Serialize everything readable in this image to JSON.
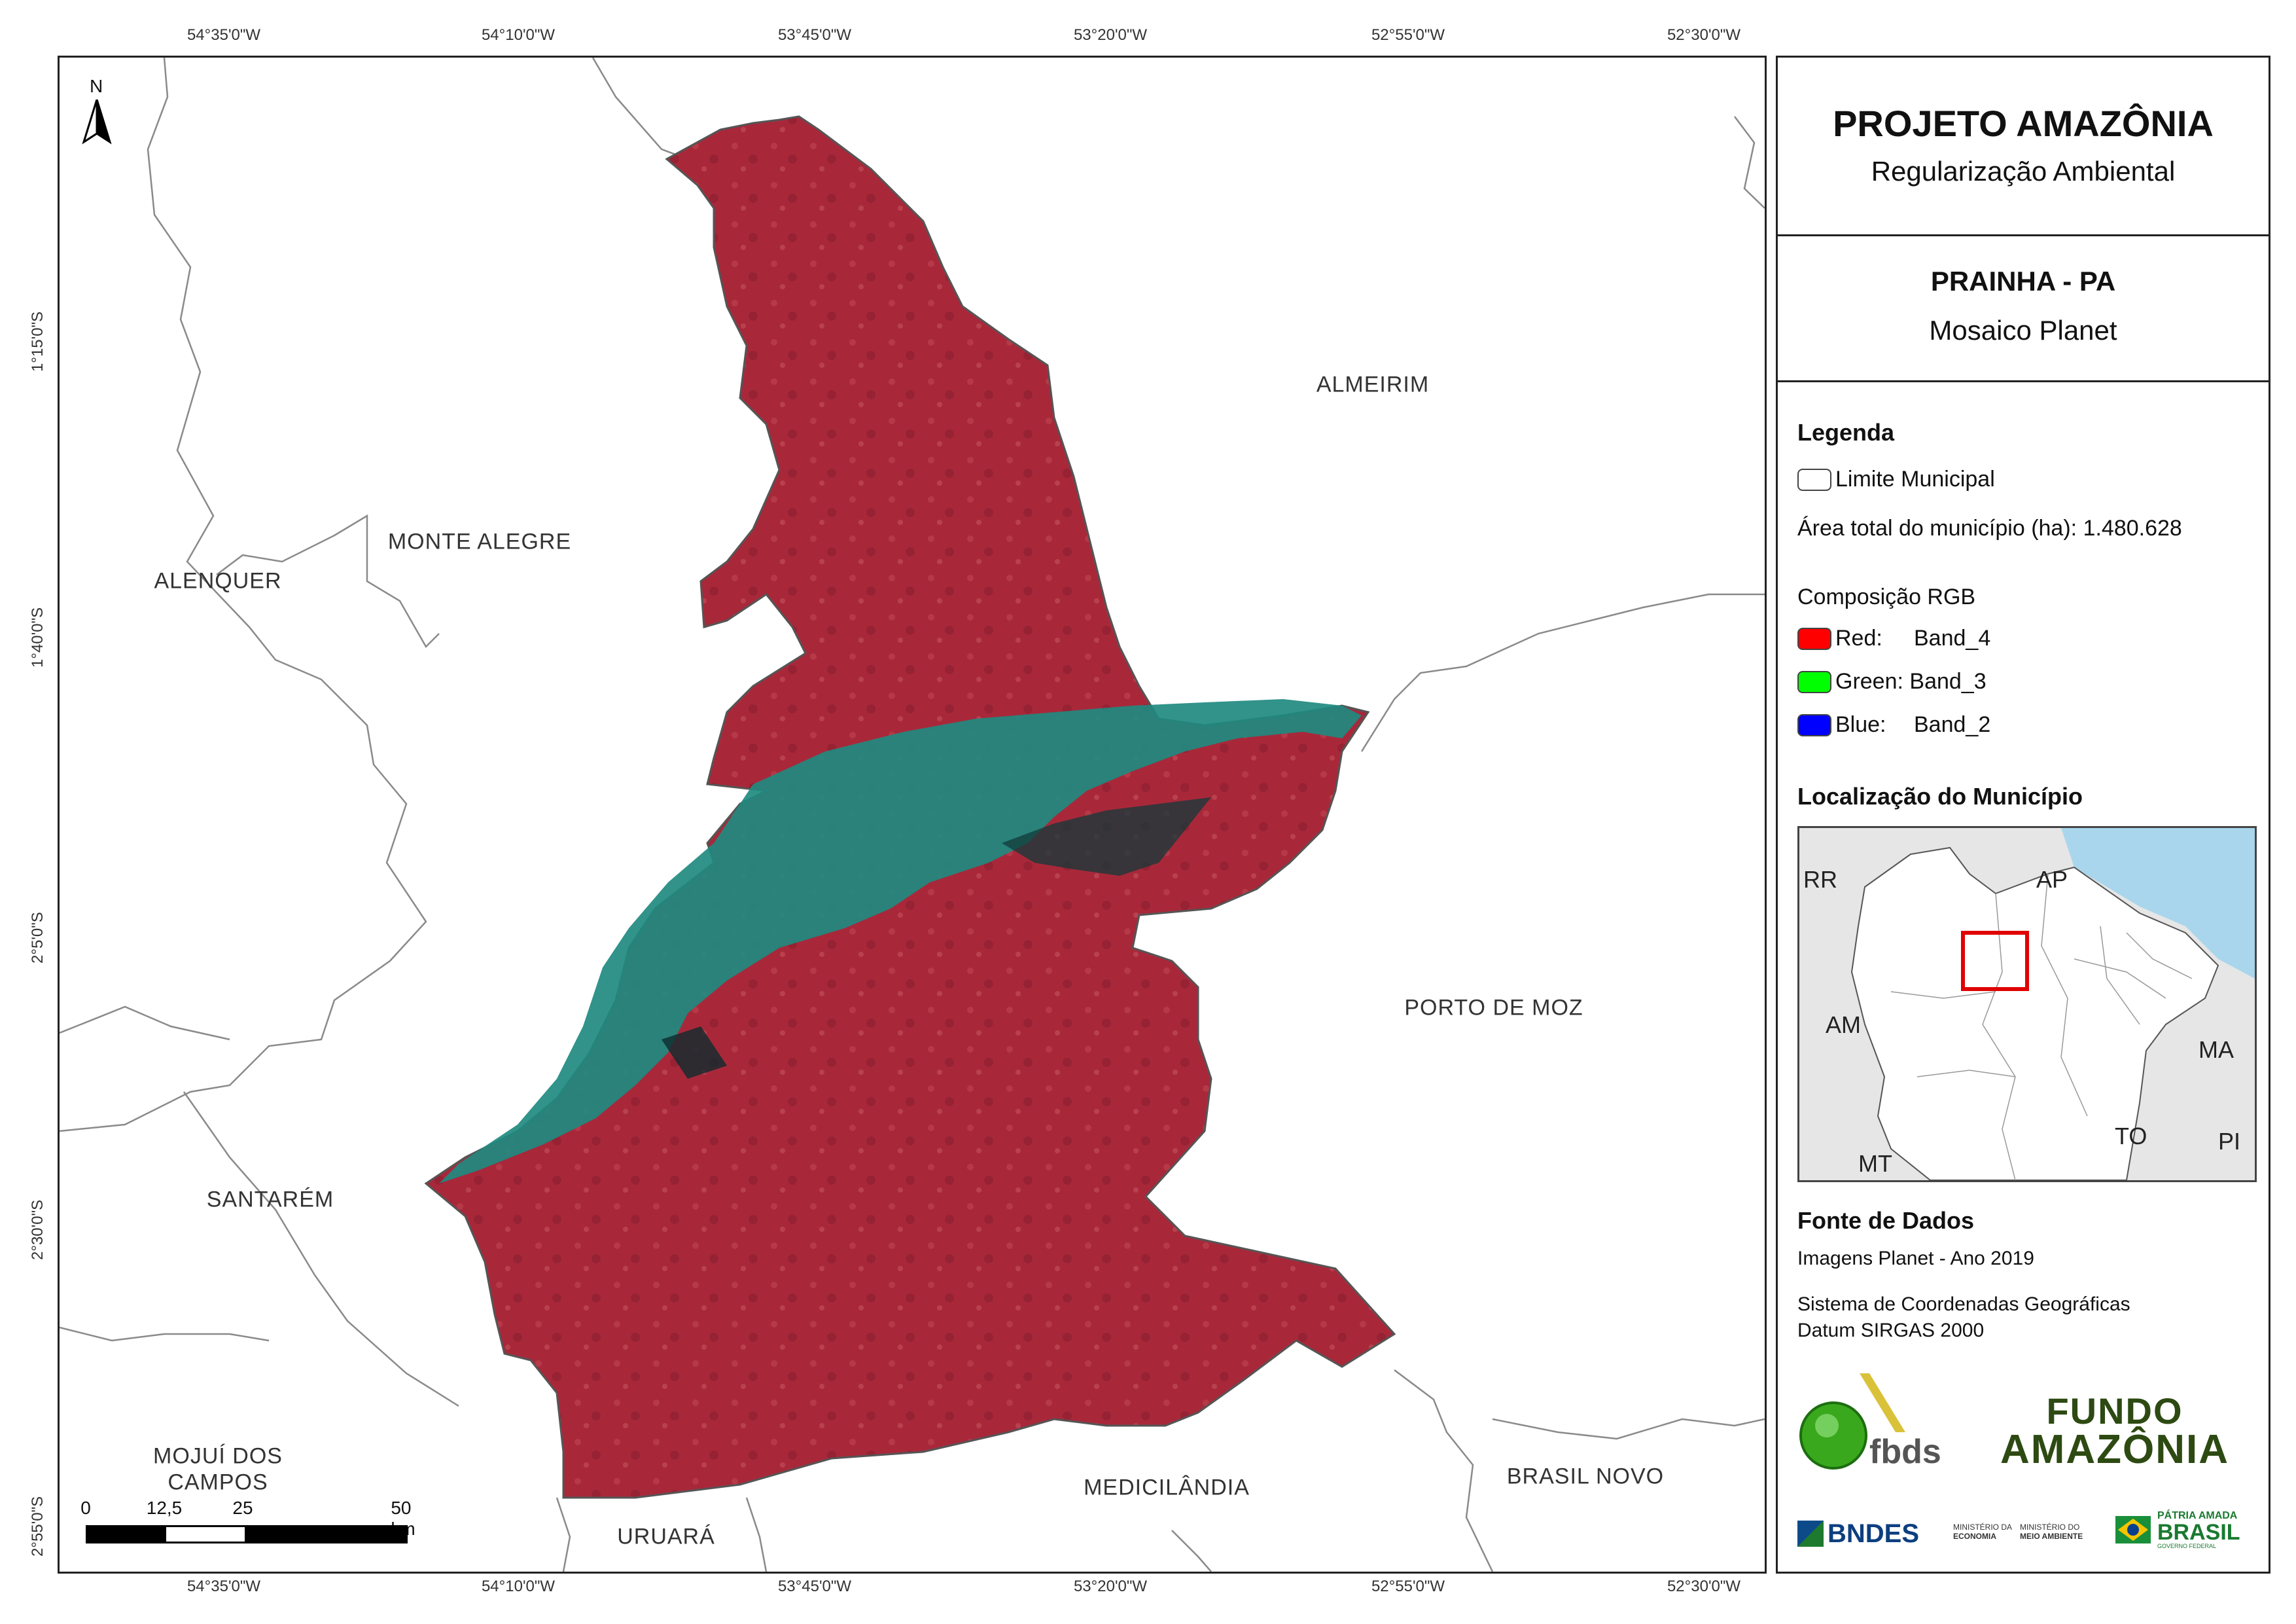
{
  "coordinates": {
    "top_longitudes": [
      "54°35'0\"W",
      "54°10'0\"W",
      "53°45'0\"W",
      "53°20'0\"W",
      "52°55'0\"W",
      "52°30'0\"W"
    ],
    "bottom_longitudes": [
      "54°35'0\"W",
      "54°10'0\"W",
      "53°45'0\"W",
      "53°20'0\"W",
      "52°55'0\"W",
      "52°30'0\"W"
    ],
    "left_latitudes": [
      "1°15'0\"S",
      "1°40'0\"S",
      "2°5'0\"S",
      "2°30'0\"S",
      "2°55'0\"S"
    ]
  },
  "north_arrow": {
    "label": "N"
  },
  "municipalities": {
    "almeirim": "ALMEIRIM",
    "monte_alegre": "MONTE ALEGRE",
    "alenquer": "ALENQUER",
    "porto_de_moz": "PORTO DE MOZ",
    "santarem": "SANTARÉM",
    "mojui_line1": "MOJUÍ DOS",
    "mojui_line2": "CAMPOS",
    "medicilandia": "MEDICILÂNDIA",
    "brasil_novo": "BRASIL NOVO",
    "uruara": "URUARÁ"
  },
  "scale_bar": {
    "labels": [
      "0",
      "12,5",
      "25",
      "50 km"
    ]
  },
  "panel": {
    "project_title": "PROJETO AMAZÔNIA",
    "project_subtitle": "Regularização Ambiental",
    "map_title": "PRAINHA - PA",
    "map_subtitle": "Mosaico Planet",
    "legend": {
      "heading": "Legenda",
      "limit_label": "Limite Municipal",
      "area_label": "Área total do município (ha): 1.480.628",
      "rgb_heading": "Composição RGB",
      "red_label": "Red:",
      "red_band": "Band_4",
      "green_label": "Green: Band_3",
      "blue_label": "Blue:",
      "blue_band": "Band_2",
      "colors": {
        "red": "#ff0000",
        "green": "#00ff00",
        "blue": "#0000ff"
      }
    },
    "location": {
      "heading": "Localização do Município",
      "states": [
        "RR",
        "AP",
        "AM",
        "MA",
        "TO",
        "PI",
        "MT"
      ]
    },
    "sources": {
      "heading": "Fonte de Dados",
      "line1": "Imagens Planet - Ano 2019",
      "line2": "Sistema de Coordenadas Geográficas",
      "line3": "Datum SIRGAS 2000"
    },
    "logos": {
      "fbds": "fbds",
      "fundo_line1": "FUNDO",
      "fundo_line2": "AMAZÔNIA",
      "bndes": "BNDES",
      "min_eco_line1": "MINISTÉRIO DA",
      "min_eco_line2": "ECONOMIA",
      "min_env_line1": "MINISTÉRIO DO",
      "min_env_line2": "MEIO AMBIENTE",
      "patria_line1": "PÁTRIA AMADA",
      "patria_line2": "BRASIL",
      "patria_line3": "GOVERNO FEDERAL"
    }
  }
}
